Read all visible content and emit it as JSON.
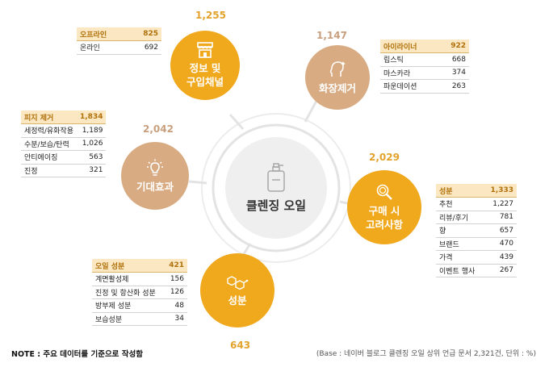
{
  "center": {
    "title": "클렌징 오일",
    "icon": "bottle-icon"
  },
  "categories": {
    "info": {
      "label": "정보 및\n구입채널",
      "count": "1,255",
      "icon": "store-icon",
      "color": "#f0a81c",
      "table": {
        "head": [
          "오프라인",
          "825"
        ],
        "rows": [
          [
            "온라인",
            "692"
          ]
        ]
      }
    },
    "makeup": {
      "label": "화장제거",
      "count": "1,147",
      "icon": "face-sparkle-icon",
      "color": "#d8ab82",
      "table": {
        "head": [
          "아이라이너",
          "922"
        ],
        "rows": [
          [
            "립스틱",
            "668"
          ],
          [
            "마스카라",
            "374"
          ],
          [
            "파운데이션",
            "263"
          ]
        ]
      }
    },
    "expect": {
      "label": "기대효과",
      "count": "2,042",
      "icon": "lightbulb-icon",
      "color": "#d8ab82",
      "table": {
        "head": [
          "피지 제거",
          "1,834"
        ],
        "rows": [
          [
            "세정력/유화작용",
            "1,189"
          ],
          [
            "수분/보습/탄력",
            "1,026"
          ],
          [
            "안티에이징",
            "563"
          ],
          [
            "진정",
            "321"
          ]
        ]
      }
    },
    "purchase": {
      "label": "구매 시\n고려사항",
      "count": "2,029",
      "icon": "magnifier-icon",
      "color": "#f0a81c",
      "table": {
        "head": [
          "성분",
          "1,333"
        ],
        "rows": [
          [
            "추천",
            "1,227"
          ],
          [
            "리뷰/후기",
            "781"
          ],
          [
            "향",
            "657"
          ],
          [
            "브랜드",
            "470"
          ],
          [
            "가격",
            "439"
          ],
          [
            "이벤트 행사",
            "267"
          ]
        ]
      }
    },
    "ingredient": {
      "label": "성분",
      "count": "643",
      "icon": "molecule-icon",
      "color": "#f0a81c",
      "table": {
        "head": [
          "오일 성분",
          "421"
        ],
        "rows": [
          [
            "계면활성제",
            "156"
          ],
          [
            "진정 및 항산화 성분",
            "126"
          ],
          [
            "방부제 성분",
            "48"
          ],
          [
            "보습성분",
            "34"
          ]
        ]
      }
    }
  },
  "footer": {
    "note": "NOTE : 주요 데이터를 기준으로 작성함",
    "base": "(Base : 네이버 블로그 클렌징 오일 상위 언급 문서 2,321건, 단위 : %)"
  }
}
